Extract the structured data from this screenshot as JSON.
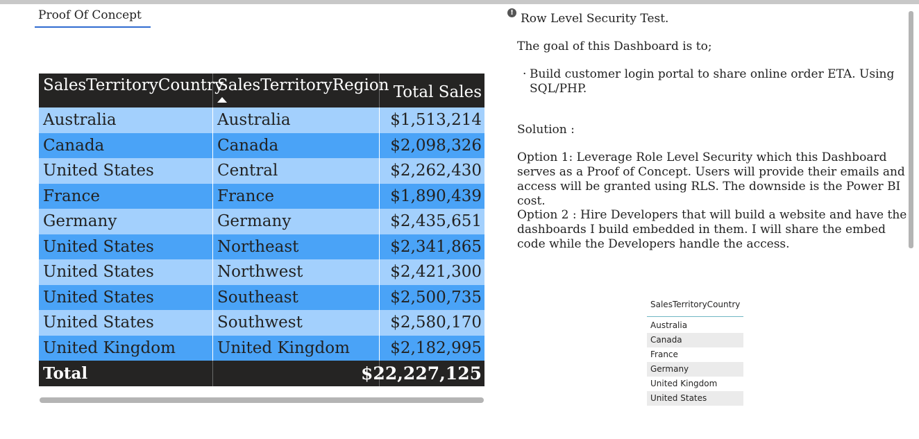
{
  "poc_tab": {
    "label": "Proof Of Concept"
  },
  "table": {
    "columns": [
      "SalesTerritoryCountry",
      "SalesTerritoryRegion",
      "Total Sales"
    ],
    "rows": [
      [
        "Australia",
        "Australia",
        "$1,513,214"
      ],
      [
        "Canada",
        "Canada",
        "$2,098,326"
      ],
      [
        "United States",
        "Central",
        "$2,262,430"
      ],
      [
        "France",
        "France",
        "$1,890,439"
      ],
      [
        "Germany",
        "Germany",
        "$2,435,651"
      ],
      [
        "United States",
        "Northeast",
        "$2,341,865"
      ],
      [
        "United States",
        "Northwest",
        "$2,421,300"
      ],
      [
        "United States",
        "Southeast",
        "$2,500,735"
      ],
      [
        "United States",
        "Southwest",
        "$2,580,170"
      ],
      [
        "United Kingdom",
        "United Kingdom",
        "$2,182,995"
      ]
    ],
    "total": {
      "label": "Total",
      "value": "$22,227,125"
    },
    "sorted_column": "SalesTerritoryRegion",
    "row_colors": {
      "light": "#a3d0fd",
      "dark": "#4aa3f7",
      "header": "#252423"
    }
  },
  "textbox": {
    "info_icon": "info-icon",
    "title": "Row Level Security Test.",
    "goal": "The goal of this Dashboard is to;",
    "bullet": "Build customer login portal to share online order ETA. Using SQL/PHP.",
    "solution": "Solution :",
    "option1": "Option 1: Leverage Role Level Security which this Dashboard serves as a Proof of Concept. Users will provide their emails and access will be granted using RLS. The downside is the Power BI cost.",
    "option2": "Option 2 : Hire Developers that will build a website and  have the dashboards I build embedded in them. I will share the embed code while the Developers handle the access."
  },
  "slicer": {
    "title": "SalesTerritoryCountry",
    "items": [
      "Australia",
      "Canada",
      "France",
      "Germany",
      "United Kingdom",
      "United States"
    ]
  }
}
